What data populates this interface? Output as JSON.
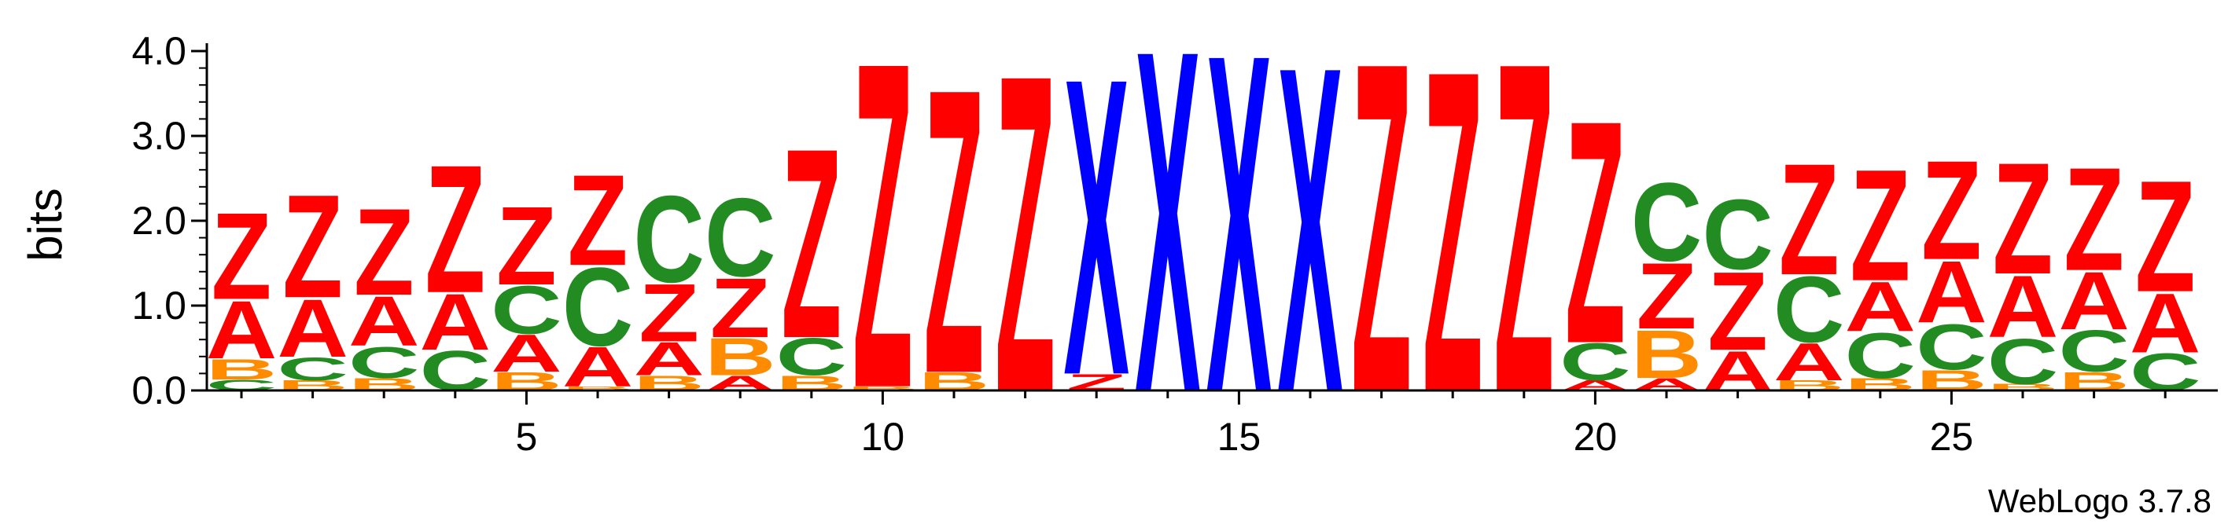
{
  "chart_data": {
    "type": "sequence-logo",
    "ylabel": "bits",
    "credit": "WebLogo 3.7.8",
    "ylim": [
      0,
      4.0
    ],
    "y_ticks": [
      "0.0",
      "1.0",
      "2.0",
      "3.0",
      "4.0"
    ],
    "x_ticks": [
      5,
      10,
      15,
      20,
      25
    ],
    "positions_range": [
      1,
      28
    ],
    "colors": {
      "Z": "#ff0000",
      "A": "#ff0000",
      "X": "#0000ff",
      "C": "#228b22",
      "B": "#ff8c00"
    },
    "columns": [
      {
        "pos": 1,
        "stack": [
          [
            "C",
            0.13
          ],
          [
            "B",
            0.25
          ],
          [
            "A",
            0.7
          ],
          [
            "Z",
            1.05
          ]
        ]
      },
      {
        "pos": 2,
        "stack": [
          [
            "B",
            0.12
          ],
          [
            "C",
            0.28
          ],
          [
            "A",
            0.7
          ],
          [
            "Z",
            1.25
          ]
        ]
      },
      {
        "pos": 3,
        "stack": [
          [
            "B",
            0.15
          ],
          [
            "C",
            0.38
          ],
          [
            "A",
            0.6
          ],
          [
            "Z",
            1.05
          ]
        ]
      },
      {
        "pos": 4,
        "stack": [
          [
            "C",
            0.48
          ],
          [
            "A",
            0.68
          ],
          [
            "Z",
            1.55
          ]
        ]
      },
      {
        "pos": 5,
        "stack": [
          [
            "B",
            0.22
          ],
          [
            "A",
            0.45
          ],
          [
            "C",
            0.58
          ],
          [
            "Z",
            0.95
          ]
        ]
      },
      {
        "pos": 6,
        "stack": [
          [
            "B",
            0.05
          ],
          [
            "A",
            0.48
          ],
          [
            "C",
            0.95
          ],
          [
            "Z",
            1.1
          ]
        ]
      },
      {
        "pos": 7,
        "stack": [
          [
            "B",
            0.18
          ],
          [
            "A",
            0.4
          ],
          [
            "Z",
            0.7
          ],
          [
            "C",
            1.05
          ]
        ]
      },
      {
        "pos": 8,
        "stack": [
          [
            "A",
            0.18
          ],
          [
            "B",
            0.45
          ],
          [
            "Z",
            0.72
          ],
          [
            "C",
            0.95
          ]
        ]
      },
      {
        "pos": 9,
        "stack": [
          [
            "B",
            0.18
          ],
          [
            "C",
            0.45
          ],
          [
            "Z",
            2.3
          ]
        ]
      },
      {
        "pos": 10,
        "stack": [
          [
            "B",
            0.05
          ],
          [
            "Z",
            3.95
          ]
        ]
      },
      {
        "pos": 11,
        "stack": [
          [
            "B",
            0.22
          ],
          [
            "Z",
            3.45
          ]
        ]
      },
      {
        "pos": 12,
        "stack": [
          [
            "Z",
            3.85
          ]
        ]
      },
      {
        "pos": 13,
        "stack": [
          [
            "Z",
            0.2
          ],
          [
            "X",
            3.6
          ]
        ]
      },
      {
        "pos": 14,
        "stack": [
          [
            "X",
            4.15
          ]
        ]
      },
      {
        "pos": 15,
        "stack": [
          [
            "X",
            4.1
          ]
        ]
      },
      {
        "pos": 16,
        "stack": [
          [
            "X",
            3.95
          ]
        ]
      },
      {
        "pos": 17,
        "stack": [
          [
            "Z",
            4.0
          ]
        ]
      },
      {
        "pos": 18,
        "stack": [
          [
            "Z",
            3.9
          ]
        ]
      },
      {
        "pos": 19,
        "stack": [
          [
            "Z",
            4.0
          ]
        ]
      },
      {
        "pos": 20,
        "stack": [
          [
            "A",
            0.12
          ],
          [
            "C",
            0.45
          ],
          [
            "Z",
            2.7
          ]
        ]
      },
      {
        "pos": 21,
        "stack": [
          [
            "A",
            0.15
          ],
          [
            "B",
            0.58
          ],
          [
            "Z",
            0.8
          ],
          [
            "C",
            0.95
          ]
        ]
      },
      {
        "pos": 22,
        "stack": [
          [
            "A",
            0.48
          ],
          [
            "Z",
            0.95
          ],
          [
            "C",
            0.85
          ]
        ]
      },
      {
        "pos": 23,
        "stack": [
          [
            "B",
            0.12
          ],
          [
            "A",
            0.45
          ],
          [
            "C",
            0.8
          ],
          [
            "Z",
            1.35
          ]
        ]
      },
      {
        "pos": 24,
        "stack": [
          [
            "B",
            0.15
          ],
          [
            "C",
            0.55
          ],
          [
            "A",
            0.6
          ],
          [
            "Z",
            1.35
          ]
        ]
      },
      {
        "pos": 25,
        "stack": [
          [
            "B",
            0.25
          ],
          [
            "C",
            0.55
          ],
          [
            "A",
            0.75
          ],
          [
            "Z",
            1.2
          ]
        ]
      },
      {
        "pos": 26,
        "stack": [
          [
            "B",
            0.08
          ],
          [
            "C",
            0.55
          ],
          [
            "A",
            0.75
          ],
          [
            "Z",
            1.35
          ]
        ]
      },
      {
        "pos": 27,
        "stack": [
          [
            "B",
            0.22
          ],
          [
            "C",
            0.5
          ],
          [
            "A",
            0.7
          ],
          [
            "Z",
            1.25
          ]
        ]
      },
      {
        "pos": 28,
        "stack": [
          [
            "C",
            0.45
          ],
          [
            "A",
            0.72
          ],
          [
            "Z",
            1.35
          ]
        ]
      }
    ]
  }
}
